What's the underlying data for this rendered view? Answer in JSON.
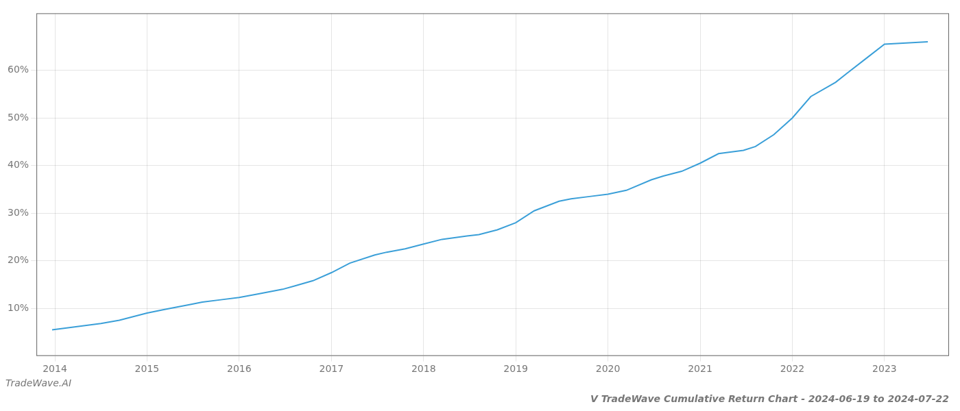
{
  "chart_data": {
    "type": "line",
    "title": "V TradeWave Cumulative Return Chart - 2024-06-19 to 2024-07-22",
    "annotations": [
      "TradeWave.AI"
    ],
    "color": "#3a9fd8",
    "grid": true,
    "x": [
      2013.97,
      2014.1,
      2014.3,
      2014.5,
      2014.7,
      2014.9,
      2015.0,
      2015.2,
      2015.47,
      2015.6,
      2015.8,
      2016.0,
      2016.2,
      2016.47,
      2016.6,
      2016.8,
      2017.0,
      2017.2,
      2017.47,
      2017.6,
      2017.8,
      2018.0,
      2018.2,
      2018.47,
      2018.6,
      2018.8,
      2019.0,
      2019.2,
      2019.47,
      2019.6,
      2019.8,
      2020.0,
      2020.2,
      2020.47,
      2020.6,
      2020.8,
      2021.0,
      2021.2,
      2021.47,
      2021.6,
      2021.8,
      2022.0,
      2022.2,
      2022.47,
      2022.6,
      2022.8,
      2023.0,
      2023.47
    ],
    "values": [
      5.5,
      5.8,
      6.3,
      6.8,
      7.5,
      8.5,
      9.0,
      9.8,
      10.8,
      11.3,
      11.8,
      12.3,
      13.0,
      14.0,
      14.7,
      15.8,
      17.5,
      19.5,
      21.2,
      21.8,
      22.5,
      23.5,
      24.5,
      25.2,
      25.5,
      26.5,
      28.0,
      30.5,
      32.5,
      33.0,
      33.5,
      34.0,
      34.8,
      37.0,
      37.8,
      38.8,
      40.5,
      42.5,
      43.2,
      44.0,
      46.5,
      50.0,
      54.5,
      57.5,
      59.5,
      62.5,
      65.5,
      66.0
    ],
    "xlim": [
      2013.8,
      2023.7
    ],
    "xticks": [
      2014,
      2015,
      2016,
      2017,
      2018,
      2019,
      2020,
      2021,
      2022,
      2023
    ],
    "ylim": [
      0,
      72
    ],
    "yticks": [
      {
        "value": 10,
        "label": "10%"
      },
      {
        "value": 20,
        "label": "20%"
      },
      {
        "value": 30,
        "label": "30%"
      },
      {
        "value": 40,
        "label": "40%"
      },
      {
        "value": 50,
        "label": "50%"
      },
      {
        "value": 60,
        "label": "60%"
      }
    ]
  }
}
